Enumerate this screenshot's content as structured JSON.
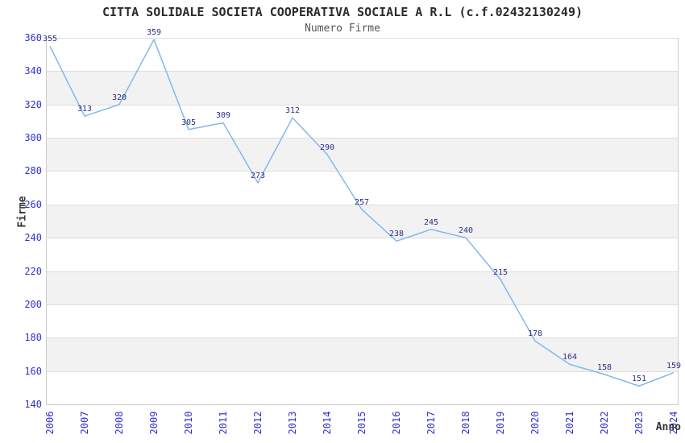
{
  "chart_data": {
    "type": "line",
    "title": "CITTA SOLIDALE SOCIETA COOPERATIVA SOCIALE A R.L (c.f.02432130249)",
    "subtitle": "Numero Firme",
    "xlabel": "Anno",
    "ylabel": "Firme",
    "categories": [
      "2006",
      "2007",
      "2008",
      "2009",
      "2010",
      "2011",
      "2012",
      "2013",
      "2014",
      "2015",
      "2016",
      "2017",
      "2018",
      "2019",
      "2020",
      "2021",
      "2022",
      "2023",
      "2024"
    ],
    "values": [
      355,
      313,
      320,
      359,
      305,
      309,
      273,
      312,
      290,
      257,
      238,
      245,
      240,
      215,
      178,
      164,
      158,
      151,
      159
    ],
    "ylim": [
      140,
      360
    ],
    "ytick_step": 20,
    "grid": "horizontal-stripes",
    "legend": "none",
    "point_labels_visible": true,
    "colors": {
      "line": "#85b7ea",
      "tick_text": "#3232cd",
      "point_label_text": "#2e2e85",
      "band": "#f2f2f2",
      "gridline": "#dedede",
      "axis_line": "#cccccc",
      "title_text": "#2b2b2b",
      "subtitle_text": "#555555",
      "axis_title_text": "#333333"
    }
  }
}
